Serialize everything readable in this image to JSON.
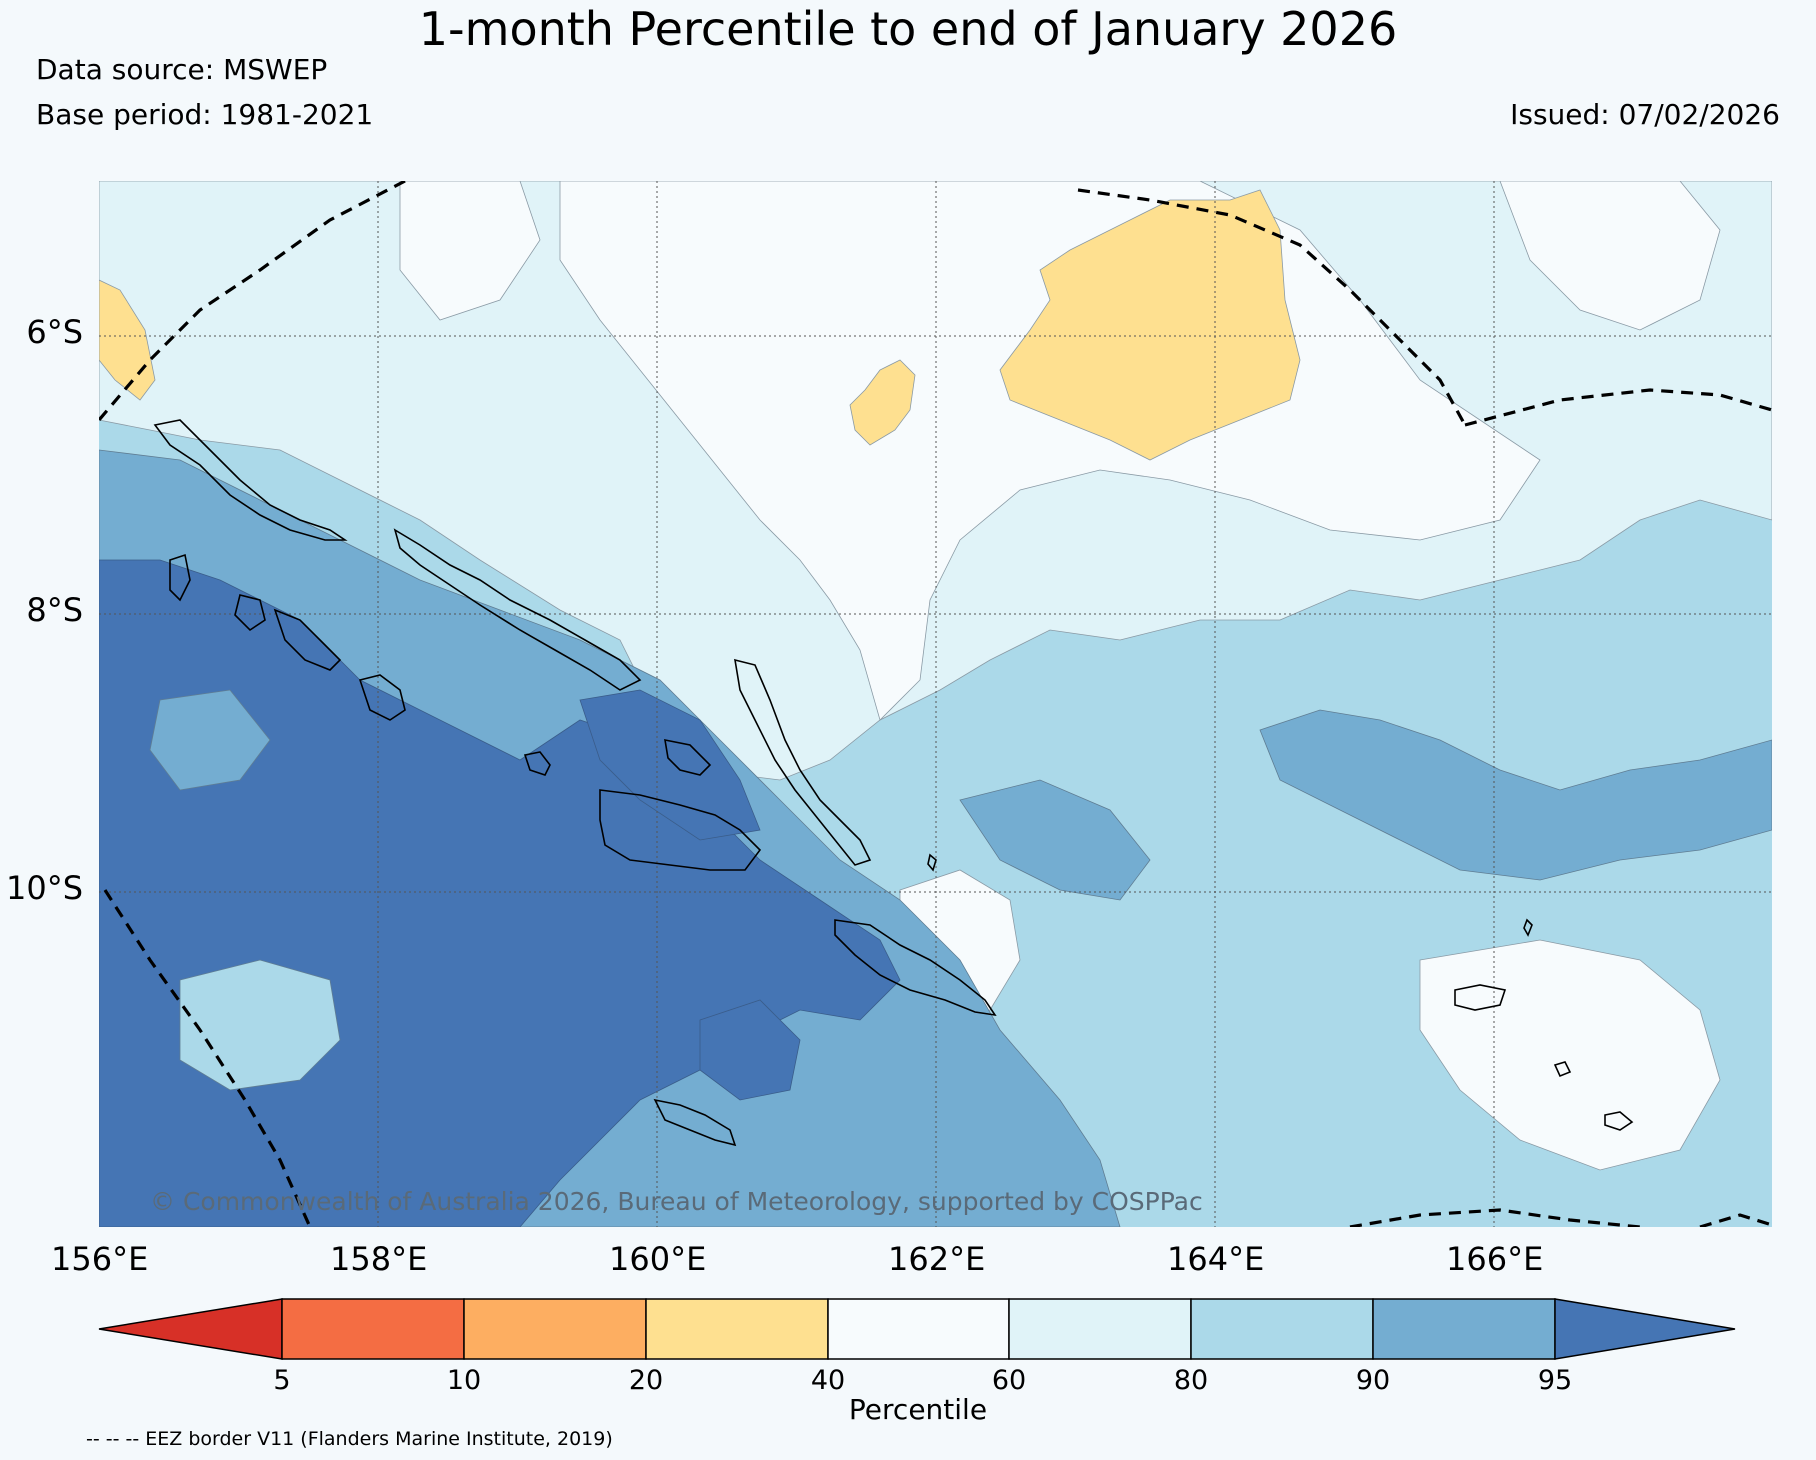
{
  "header": {
    "title": "1-month Percentile to end of January 2026",
    "data_source": "Data source: MSWEP",
    "base_period": "Base period: 1981-2021",
    "issued": "Issued: 07/02/2026"
  },
  "map": {
    "lon_labels": [
      "156°E",
      "158°E",
      "160°E",
      "162°E",
      "164°E",
      "166°E"
    ],
    "lat_labels": [
      "6°S",
      "8°S",
      "10°S"
    ],
    "copyright": "© Commonwealth of Australia 2026, Bureau of Meteorology, supported by COSPPac"
  },
  "colorbar": {
    "title": "Percentile",
    "ticks": [
      "5",
      "10",
      "20",
      "40",
      "60",
      "80",
      "90",
      "95"
    ],
    "colors": [
      "#d73027",
      "#f46d43",
      "#fdae61",
      "#fee090",
      "#f7fbfd",
      "#e0f3f8",
      "#abd9e9",
      "#74add1",
      "#4575b4"
    ]
  },
  "footnote": "-- -- -- EEZ border V11 (Flanders Marine Institute, 2019)"
}
